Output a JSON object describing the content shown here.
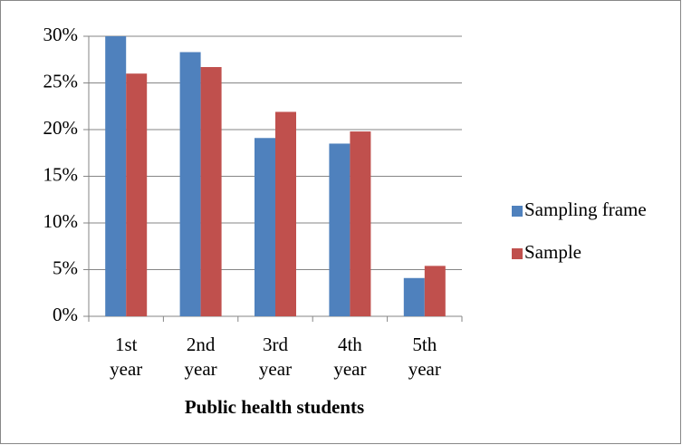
{
  "chart_data": {
    "type": "bar",
    "x_label": "Public health students",
    "categories": [
      "1st year",
      "2nd year",
      "3rd year",
      "4th year",
      "5th year"
    ],
    "series": [
      {
        "name": "Sampling frame",
        "color": "#4f81bd",
        "values": [
          30.0,
          28.3,
          19.1,
          18.5,
          4.1
        ]
      },
      {
        "name": "Sample",
        "color": "#c0504d",
        "values": [
          26.0,
          26.7,
          21.9,
          19.8,
          5.4
        ]
      }
    ],
    "ylim": [
      0,
      30
    ],
    "yticks": [
      {
        "value": 0,
        "label": "0%"
      },
      {
        "value": 5,
        "label": "5%"
      },
      {
        "value": 10,
        "label": "10%"
      },
      {
        "value": 15,
        "label": "15%"
      },
      {
        "value": 20,
        "label": "20%"
      },
      {
        "value": 25,
        "label": "25%"
      },
      {
        "value": 30,
        "label": "30%"
      }
    ],
    "grid": true,
    "legend": "right"
  }
}
